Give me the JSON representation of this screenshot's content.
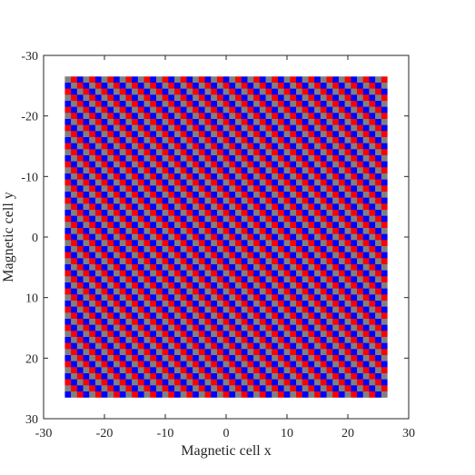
{
  "chart_data": {
    "type": "heatmap",
    "xlabel": "Magnetic cell x",
    "ylabel": "Magnetic cell y",
    "xlim": [
      -30,
      30
    ],
    "ylim": [
      -30,
      30
    ],
    "y_direction": "reversed",
    "x_ticks": [
      -30,
      -20,
      -10,
      0,
      10,
      20,
      30
    ],
    "x_tick_labels": [
      "-30",
      "-20",
      "-10",
      "0",
      "10",
      "20",
      "30"
    ],
    "y_ticks": [
      -30,
      -20,
      -10,
      0,
      10,
      20,
      30
    ],
    "y_tick_labels": [
      "-30",
      "-20",
      "-10",
      "0",
      "10",
      "20",
      "30"
    ],
    "grid": false,
    "legend": "none",
    "cell_range": {
      "x": [
        -26.5,
        26.5
      ],
      "y": [
        -26.5,
        26.5
      ]
    },
    "period_cells": 3,
    "pattern_note": "Checkerboard-like lattice with period 3 along the anti-diagonal: gray, red, blue cells",
    "colors": {
      "background_cell": "#808080",
      "up_cell": "#ff0000",
      "down_cell": "#0000ff",
      "border_cell": "#5a5ab4",
      "axes": "#262626"
    }
  }
}
